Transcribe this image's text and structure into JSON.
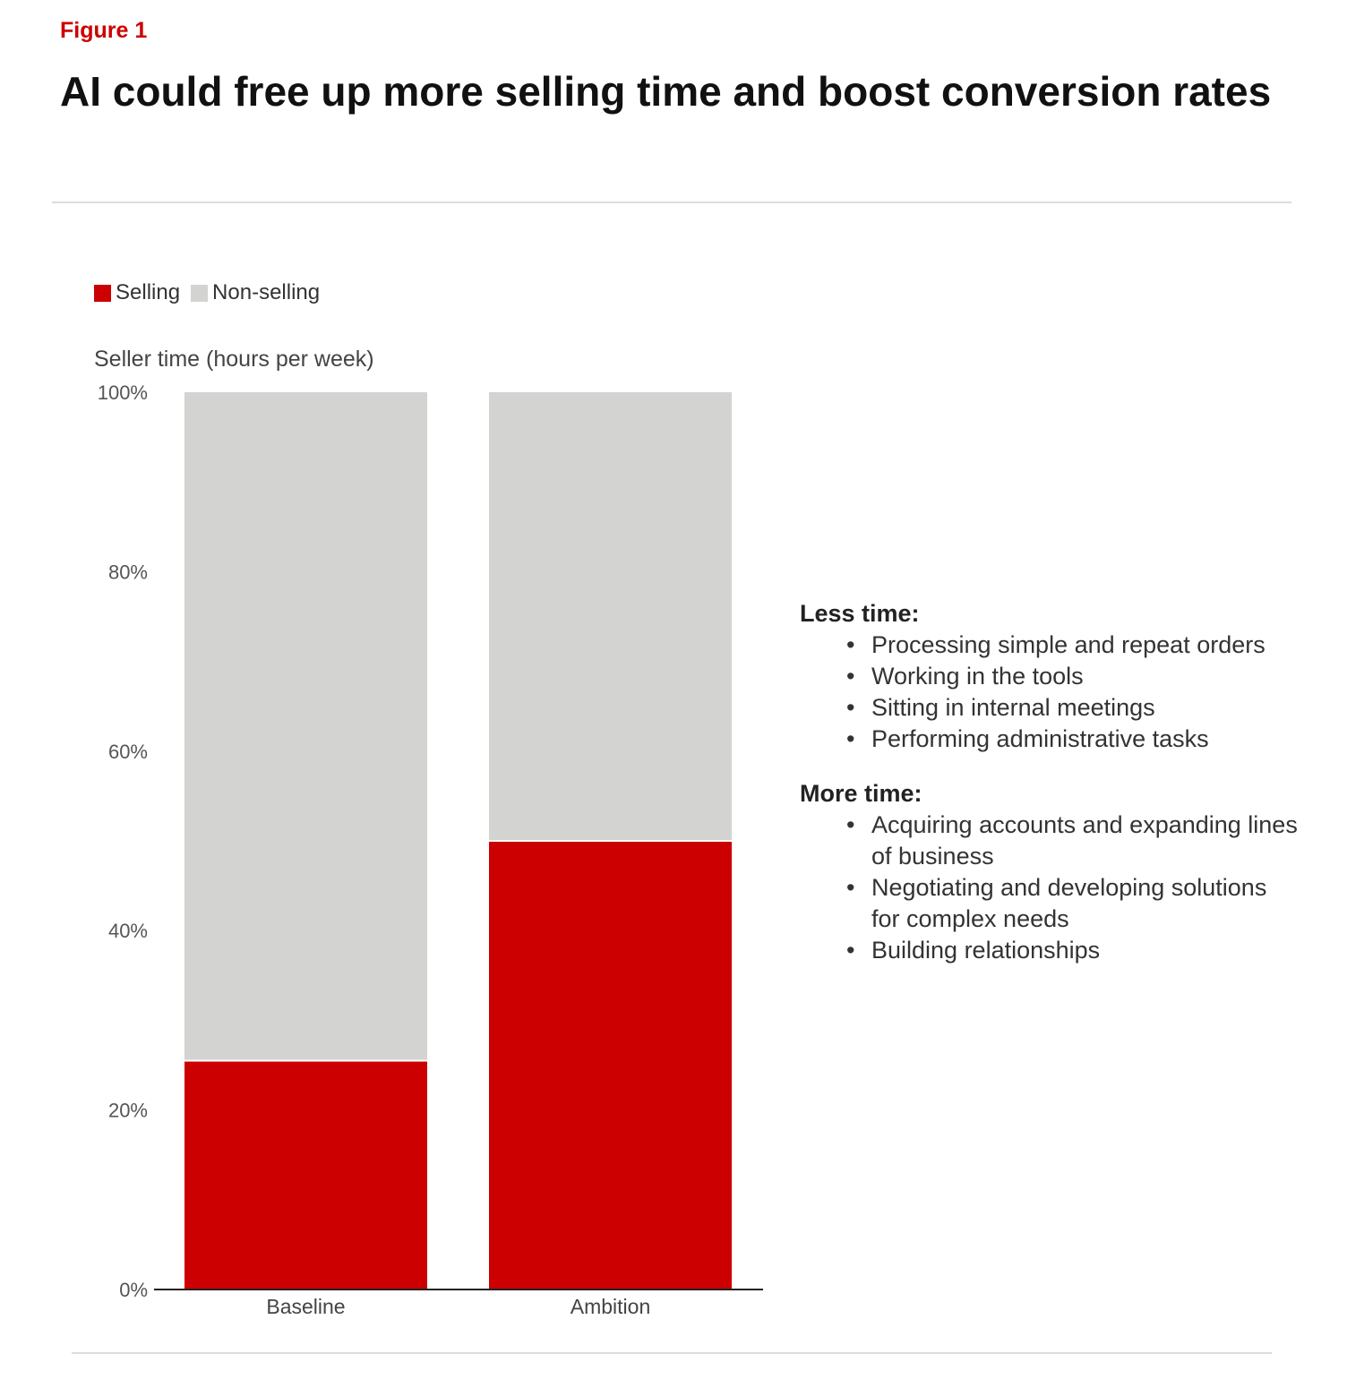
{
  "figure_label": "Figure 1",
  "title": "AI could free up more selling time and boost conversion rates",
  "legend": [
    {
      "name": "Selling",
      "color": "#cc0000"
    },
    {
      "name": "Non-selling",
      "color": "#d3d3d2"
    }
  ],
  "chart_data": {
    "type": "bar",
    "stacked": true,
    "ylabel": "Seller time (hours per week)",
    "categories": [
      "Baseline",
      "Ambition"
    ],
    "series": [
      {
        "name": "Selling",
        "color": "#cc0000",
        "values": [
          25.5,
          50
        ]
      },
      {
        "name": "Non-selling",
        "color": "#d3d3d2",
        "values": [
          74.5,
          50
        ]
      }
    ],
    "ylim": [
      0,
      100
    ],
    "yticks": [
      0,
      20,
      40,
      60,
      80,
      100
    ],
    "ytick_labels": [
      "0%",
      "20%",
      "40%",
      "60%",
      "80%",
      "100%"
    ],
    "grid": false,
    "legend_position": "top-left"
  },
  "annotations": [
    {
      "heading": "Less time:",
      "items": [
        "Processing simple and repeat orders",
        "Working in the tools",
        "Sitting in internal meetings",
        "Performing administrative tasks"
      ]
    },
    {
      "heading": "More time:",
      "items": [
        "Acquiring accounts and expanding lines of business",
        "Negotiating and developing solutions for complex needs",
        "Building relationships"
      ]
    }
  ]
}
